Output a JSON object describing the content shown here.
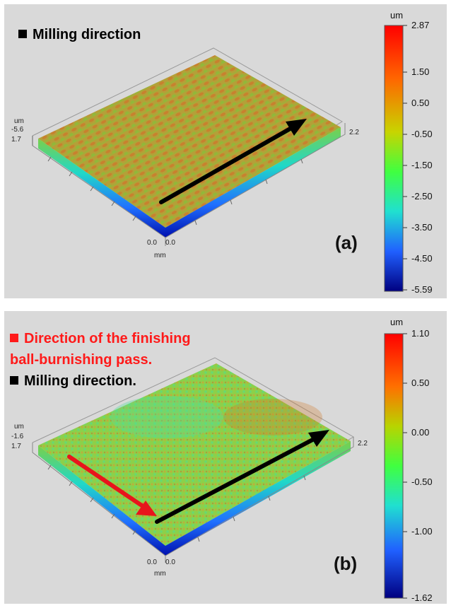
{
  "panels": [
    {
      "id": "a",
      "tag": "(a)",
      "legend": [
        {
          "text": "Milling direction",
          "color": "#000000"
        }
      ],
      "axis": {
        "z_unit": "um",
        "z_min": "-5.6",
        "y_max": "1.7",
        "x_max": "2.2",
        "origin_y": "0.0",
        "origin_x": "0.0",
        "xy_unit": "mm"
      },
      "colorbar": {
        "unit": "um",
        "ticks": [
          "2.87",
          "1.50",
          "0.50",
          "-0.50",
          "-1.50",
          "-2.50",
          "-3.50",
          "-4.50",
          "-5.59"
        ]
      },
      "arrows": [
        {
          "color": "#000000"
        }
      ]
    },
    {
      "id": "b",
      "tag": "(b)",
      "legend": [
        {
          "text": "Direction of the finishing",
          "color": "#ff1a1a"
        },
        {
          "text": "ball-burnishing  pass.",
          "color": "#ff1a1a"
        },
        {
          "text": "Milling direction.",
          "color": "#000000"
        }
      ],
      "axis": {
        "z_unit": "um",
        "z_min": "-1.6",
        "y_max": "1.7",
        "x_max": "2.2",
        "origin_y": "0.0",
        "origin_x": "0.0",
        "xy_unit": "mm"
      },
      "colorbar": {
        "unit": "um",
        "ticks": [
          "1.10",
          "0.50",
          "0.00",
          "-0.50",
          "-1.00",
          "-1.62"
        ]
      },
      "arrows": [
        {
          "color": "#e8141c"
        },
        {
          "color": "#000000"
        }
      ]
    }
  ]
}
